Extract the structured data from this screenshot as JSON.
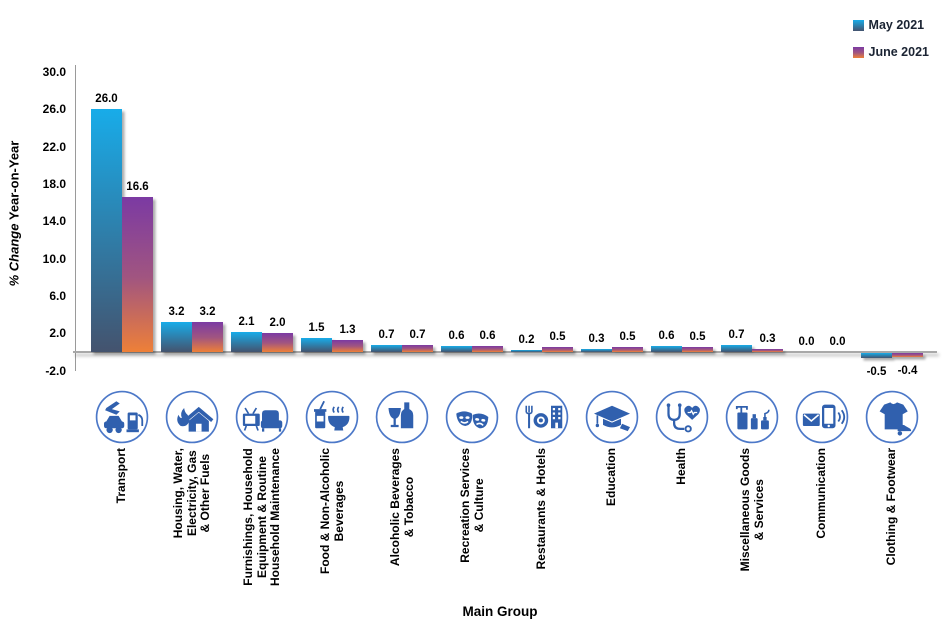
{
  "legend": {
    "items": [
      {
        "label": "May 2021"
      },
      {
        "label": "June 2021"
      }
    ]
  },
  "axis": {
    "y_title_italic": "% Change",
    "y_title_rest": "Year-on-Year",
    "x_title": "Main Group"
  },
  "chart_data": {
    "type": "bar",
    "title": "",
    "xlabel": "Main Group",
    "ylabel": "% Change Year-on-Year",
    "ylim": [
      -2.0,
      30.0
    ],
    "yticks": [
      30.0,
      26.0,
      22.0,
      18.0,
      14.0,
      10.0,
      6.0,
      2.0,
      -2.0
    ],
    "grid": false,
    "legend_position": "top-right",
    "categories": [
      "Transport",
      "Housing, Water,\nElectricity, Gas\n& Other Fuels",
      "Furnishings, Household\nEquipment & Routine\nHousehold Maintenance",
      "Food & Non-Alcoholic\nBeverages",
      "Alcoholic Beverages\n& Tobacco",
      "Recreation Services\n& Culture",
      "Restaurants & Hotels",
      "Education",
      "Health",
      "Miscellaneous Goods\n& Services",
      "Communication",
      "Clothing & Footwear"
    ],
    "icons": [
      "transport-icon",
      "housing-icon",
      "furnishings-icon",
      "food-beverages-icon",
      "alcoholic-beverages-icon",
      "recreation-icon",
      "restaurants-hotels-icon",
      "education-icon",
      "health-icon",
      "miscellaneous-goods-icon",
      "communication-icon",
      "clothing-footwear-icon"
    ],
    "series": [
      {
        "name": "May 2021",
        "values": [
          26.0,
          3.2,
          2.1,
          1.5,
          0.7,
          0.6,
          0.2,
          0.3,
          0.6,
          0.7,
          0.0,
          -0.5
        ]
      },
      {
        "name": "June 2021",
        "values": [
          16.6,
          3.2,
          2.0,
          1.3,
          0.7,
          0.6,
          0.5,
          0.5,
          0.5,
          0.3,
          0.0,
          -0.4
        ]
      }
    ]
  },
  "colors": {
    "may_gradient": [
      "#18ACE9",
      "#44536E"
    ],
    "june_gradient": [
      "#7B3AA3",
      "#A15580",
      "#EE8038"
    ],
    "icon_ring": "#4C78C8",
    "icon_glyph": "#3060AE",
    "axis_line": "#a8a8a8",
    "text": "#000000",
    "legend_text": "#1b2433"
  }
}
